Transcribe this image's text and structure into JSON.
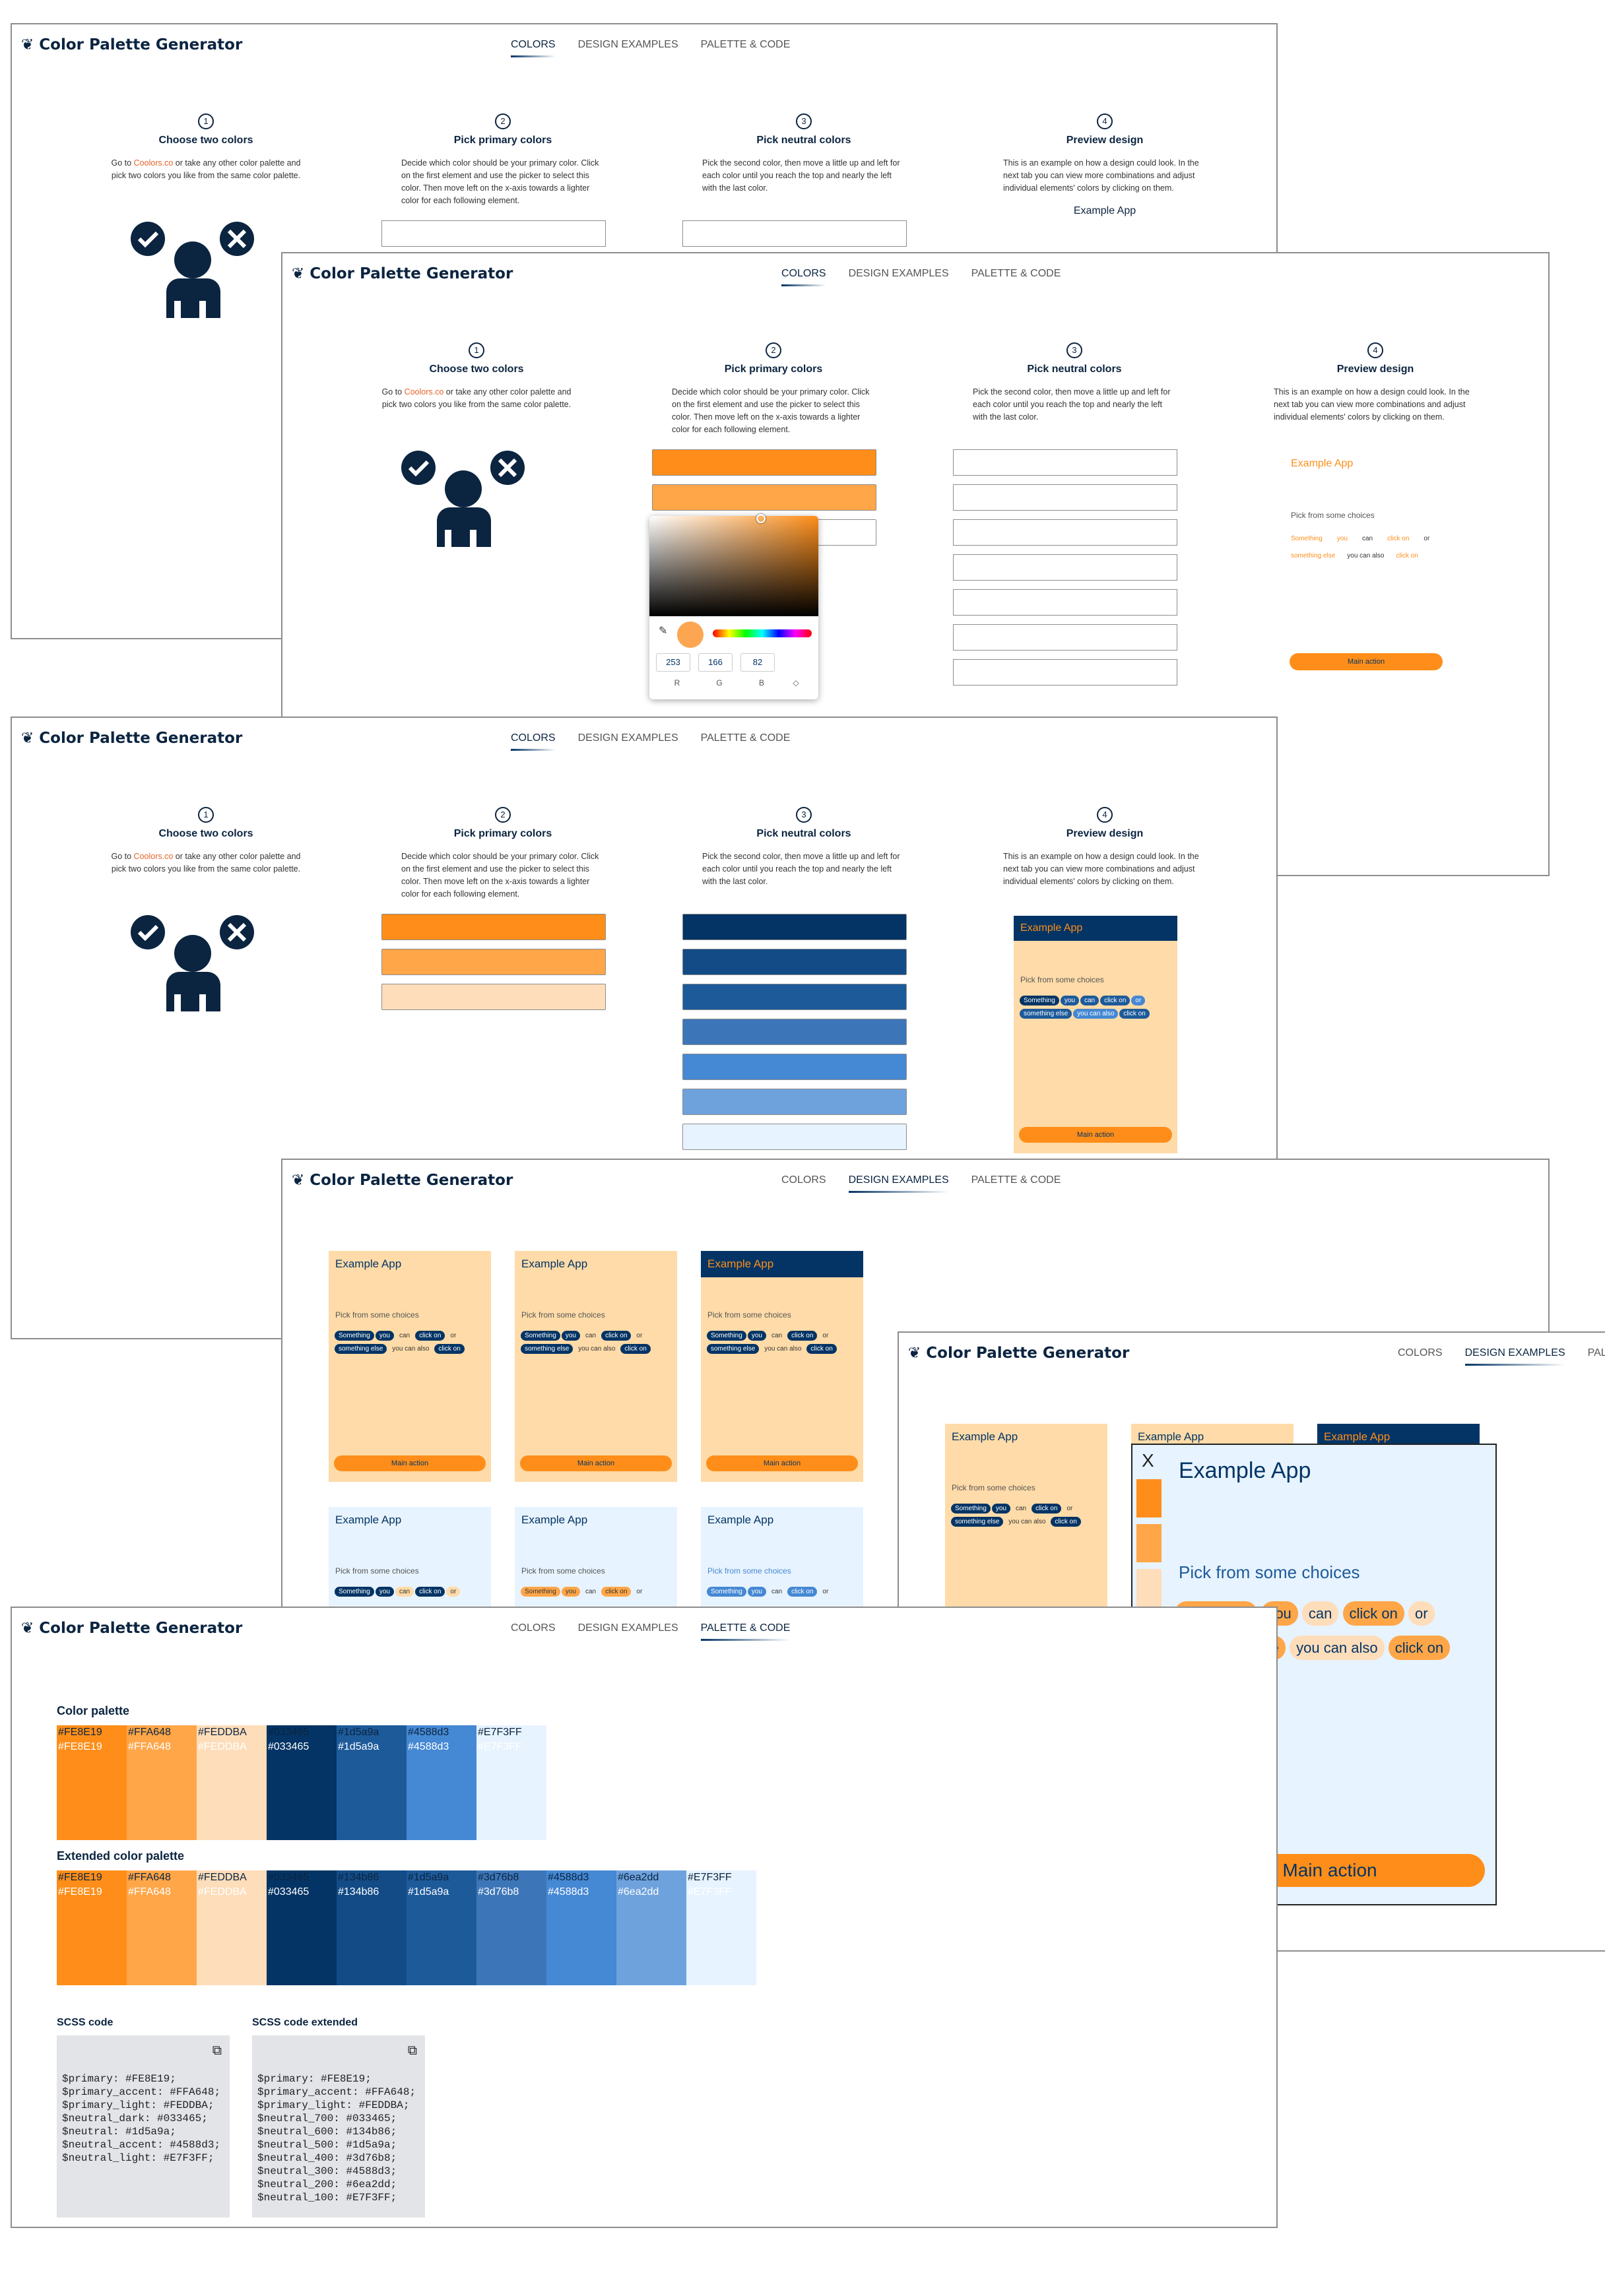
{
  "app": {
    "title": "Color Palette Generator",
    "tabs": [
      "COLORS",
      "DESIGN EXAMPLES",
      "PALETTE & CODE"
    ]
  },
  "steps": [
    {
      "n": "1",
      "title": "Choose two colors",
      "desc_pre": "Go to ",
      "link": "Coolors.co",
      "desc_post": " or take any other color palette and pick two colors you like from the same color palette."
    },
    {
      "n": "2",
      "title": "Pick primary colors",
      "desc": "Decide which color should be your primary color. Click on the first element and use the picker to select this color. Then move left on the x-axis towards a lighter color for each following element."
    },
    {
      "n": "3",
      "title": "Pick neutral colors",
      "desc": "Pick the second color, then move a little up and left for each color until you reach the top and nearly the left with the last color."
    },
    {
      "n": "4",
      "title": "Preview design",
      "desc": "This is an example on how a design could look. In the next tab you can view more combinations and adjust individual elements' colors by clicking on them."
    }
  ],
  "preview": {
    "app_title": "Example App",
    "pick": "Pick from some choices",
    "chips": [
      "Something",
      "you",
      "can",
      "click on",
      "or",
      "something else",
      "you can also",
      "click on"
    ],
    "main": "Main action"
  },
  "picker": {
    "r": "253",
    "g": "166",
    "b": "82",
    "lr": "R",
    "lg": "G",
    "lb": "B",
    "sel": "◇"
  },
  "colors": {
    "primary": "#FE8E19",
    "primary_accent": "#FFA648",
    "primary_light": "#FEDDBA",
    "neutral_dark": "#033465",
    "neutral": "#1d5a9a",
    "neutral_accent": "#4588d3",
    "neutral_light": "#E7F3FF"
  },
  "neutrals": [
    "#033465",
    "#134b86",
    "#1d5a9a",
    "#3d76b8",
    "#4588d3",
    "#6ea2dd",
    "#E7F3FF"
  ],
  "palette": {
    "heading": "Color palette",
    "swatches": [
      "#FE8E19",
      "#FFA648",
      "#FEDDBA",
      "#033465",
      "#1d5a9a",
      "#4588d3",
      "#E7F3FF"
    ]
  },
  "extended": {
    "heading": "Extended color palette",
    "swatches": [
      "#FE8E19",
      "#FFA648",
      "#FEDDBA",
      "#033465",
      "#134b86",
      "#1d5a9a",
      "#3d76b8",
      "#4588d3",
      "#6ea2dd",
      "#E7F3FF"
    ]
  },
  "scss": {
    "heading": "SCSS code",
    "code": "$primary: #FE8E19;\n$primary_accent: #FFA648;\n$primary_light: #FEDDBA;\n$neutral_dark: #033465;\n$neutral: #1d5a9a;\n$neutral_accent: #4588d3;\n$neutral_light: #E7F3FF;"
  },
  "scss_ext": {
    "heading": "SCSS code extended",
    "code": "$primary: #FE8E19;\n$primary_accent: #FFA648;\n$primary_light: #FEDDBA;\n$neutral_700: #033465;\n$neutral_600: #134b86;\n$neutral_500: #1d5a9a;\n$neutral_400: #3d76b8;\n$neutral_300: #4588d3;\n$neutral_200: #6ea2dd;\n$neutral_100: #E7F3FF;"
  },
  "modal": {
    "close": "X",
    "plus": "+"
  },
  "tabs_cut": "PAL"
}
